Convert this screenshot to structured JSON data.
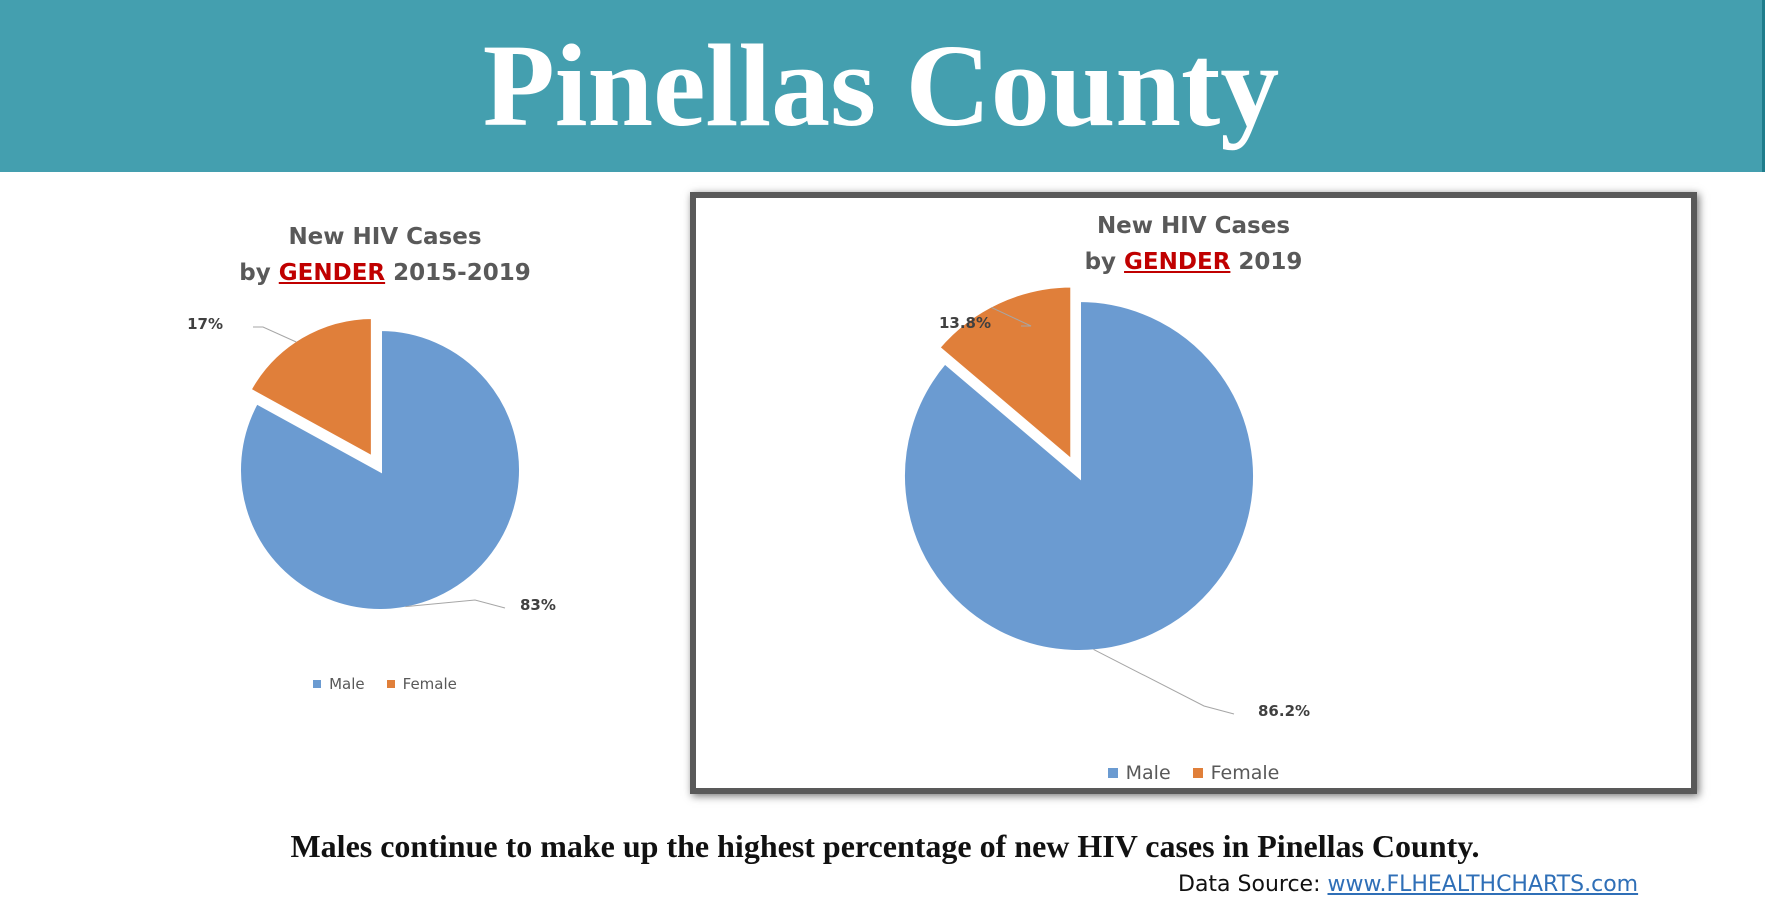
{
  "header": {
    "title": "Pinellas County"
  },
  "colors": {
    "male": "#6b9bd1",
    "female": "#e07f3a",
    "banner": "#449faf"
  },
  "chart_data": [
    {
      "type": "pie",
      "title_line1": "New HIV Cases",
      "title_prefix": "by",
      "title_emphasis": "GENDER",
      "title_suffix": "2015-2019",
      "categories": [
        "Male",
        "Female"
      ],
      "values": [
        83,
        17
      ],
      "labels": [
        "83%",
        "17%"
      ],
      "legend": "bottom"
    },
    {
      "type": "pie",
      "title_line1": "New HIV Cases",
      "title_prefix": "by",
      "title_emphasis": "GENDER",
      "title_suffix": "2019",
      "categories": [
        "Male",
        "Female"
      ],
      "values": [
        86.2,
        13.8
      ],
      "labels": [
        "86.2%",
        "13.8%"
      ],
      "legend": "bottom"
    }
  ],
  "footer": {
    "caption": "Males continue to make up the highest percentage of new HIV cases in Pinellas County.",
    "source_label": "Data Source:",
    "source_link": "www.FLHEALTHCHARTS.com"
  }
}
